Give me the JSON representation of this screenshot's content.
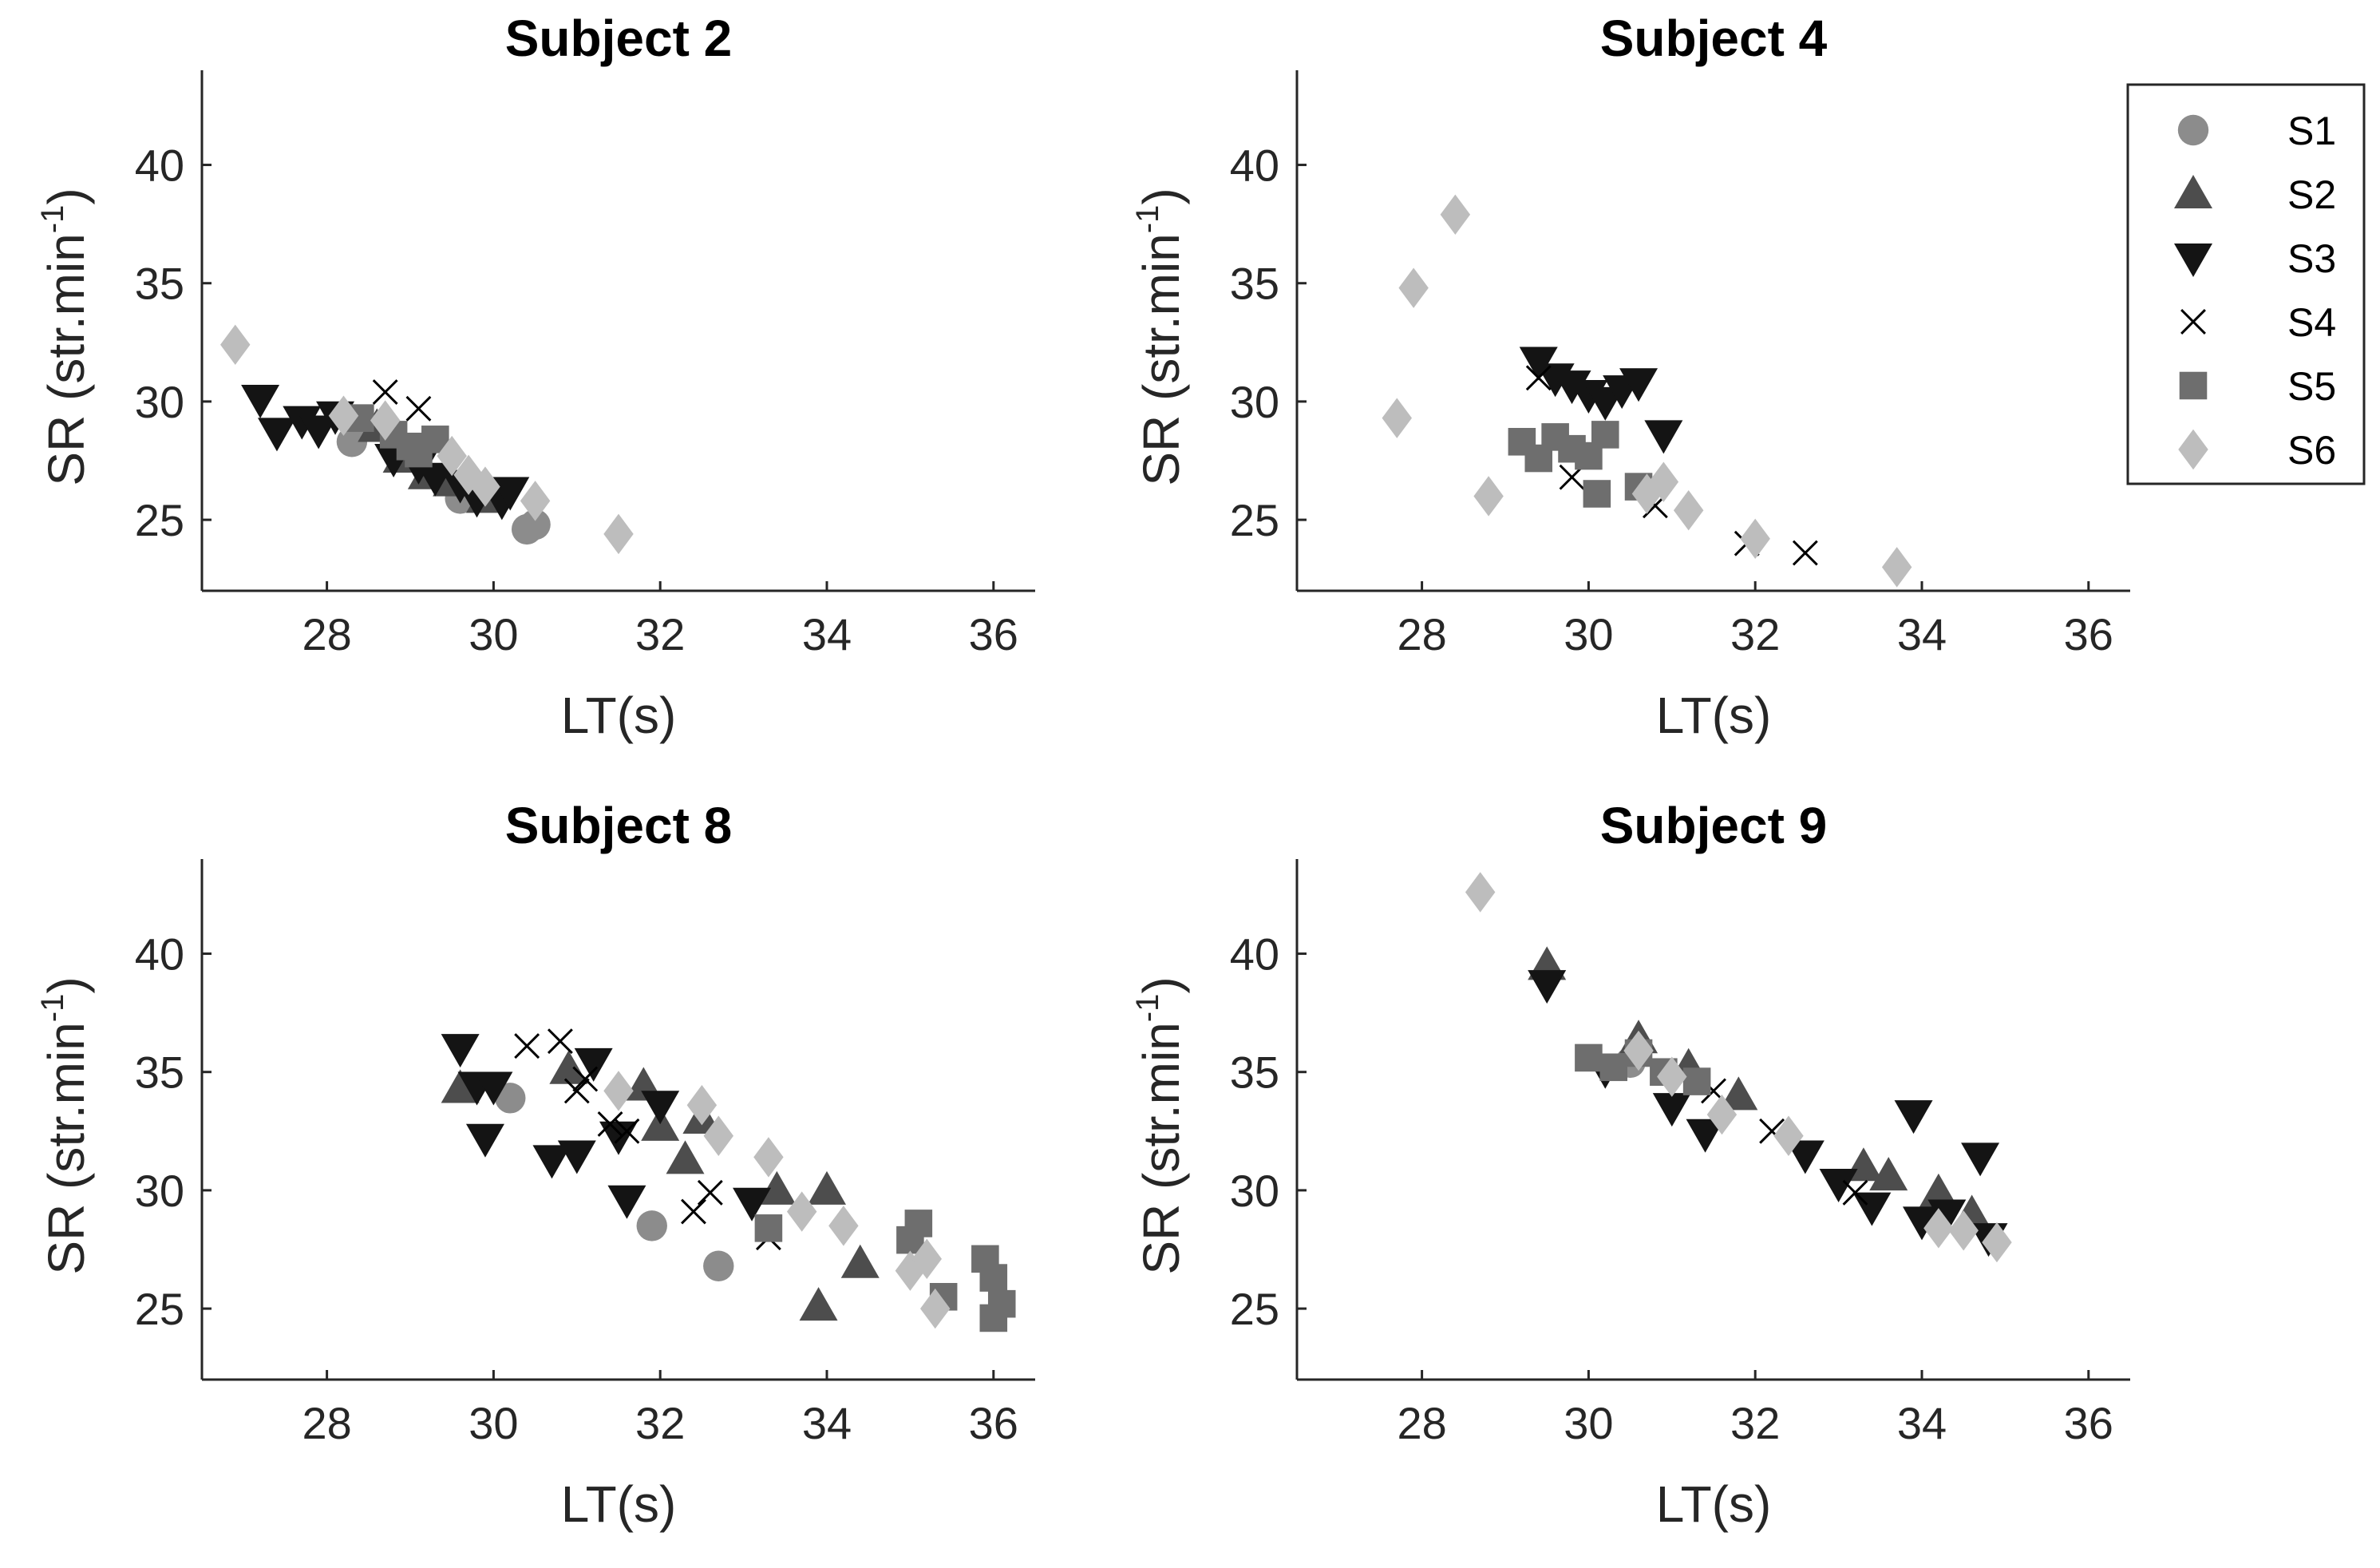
{
  "figure": {
    "legend": {
      "entries": [
        {
          "label": "S1",
          "marker": "circle",
          "color": "#8c8c8c"
        },
        {
          "label": "S2",
          "marker": "triangle-up",
          "color": "#4d4d4d"
        },
        {
          "label": "S3",
          "marker": "triangle-down",
          "color": "#141414"
        },
        {
          "label": "S4",
          "marker": "x",
          "color": "#000000"
        },
        {
          "label": "S5",
          "marker": "square",
          "color": "#6e6e6e"
        },
        {
          "label": "S6",
          "marker": "diamond",
          "color": "#bdbdbd"
        }
      ]
    }
  },
  "chart_data": [
    {
      "type": "scatter",
      "title": "Subject 2",
      "xlabel": "LT(s)",
      "ylabel": "SR (str.min",
      "ylabel_sup": "-1",
      "ylabel_close": ")",
      "xlim": [
        26.5,
        36.5
      ],
      "ylim": [
        22,
        44
      ],
      "xticks": [
        28,
        30,
        32,
        34,
        36
      ],
      "yticks": [
        25,
        30,
        35,
        40
      ],
      "series": [
        {
          "name": "S1",
          "x": [
            28.3,
            29.6,
            30.4,
            30.5
          ],
          "y": [
            28.3,
            25.9,
            24.6,
            24.8
          ]
        },
        {
          "name": "S2",
          "x": [
            28.6,
            28.9,
            29.2,
            29.5,
            29.9
          ],
          "y": [
            28.9,
            27.6,
            26.9,
            26.6,
            25.9
          ]
        },
        {
          "name": "S3",
          "x": [
            27.2,
            27.4,
            27.7,
            27.9,
            28.1,
            28.8,
            29.1,
            29.3,
            29.6,
            29.8,
            30.1,
            30.2
          ],
          "y": [
            30.1,
            28.7,
            29.2,
            28.8,
            29.4,
            27.6,
            27.3,
            26.8,
            26.5,
            25.9,
            25.8,
            26.2
          ]
        },
        {
          "name": "S4",
          "x": [
            28.7,
            29.1
          ],
          "y": [
            30.4,
            29.7
          ]
        },
        {
          "name": "S5",
          "x": [
            28.4,
            28.8,
            29.0,
            29.1,
            29.3
          ],
          "y": [
            29.3,
            28.6,
            28.1,
            27.8,
            28.4
          ]
        },
        {
          "name": "S6",
          "x": [
            26.9,
            28.2,
            28.7,
            29.5,
            29.7,
            29.9,
            30.5,
            31.5
          ],
          "y": [
            32.4,
            29.4,
            29.2,
            27.7,
            26.9,
            26.4,
            25.8,
            24.4
          ]
        }
      ]
    },
    {
      "type": "scatter",
      "title": "Subject 4",
      "xlabel": "LT(s)",
      "ylabel": "SR (str.min",
      "ylabel_sup": "-1",
      "ylabel_close": ")",
      "xlim": [
        26.5,
        36.5
      ],
      "ylim": [
        22,
        44
      ],
      "xticks": [
        28,
        30,
        32,
        34,
        36
      ],
      "yticks": [
        25,
        30,
        35,
        40
      ],
      "series": [
        {
          "name": "S1",
          "x": [],
          "y": []
        },
        {
          "name": "S2",
          "x": [],
          "y": []
        },
        {
          "name": "S3",
          "x": [
            29.4,
            29.6,
            29.8,
            30.0,
            30.2,
            30.4,
            30.6,
            30.9
          ],
          "y": [
            31.7,
            31.0,
            30.7,
            30.3,
            30.0,
            30.5,
            30.8,
            28.6
          ]
        },
        {
          "name": "S4",
          "x": [
            29.4,
            29.8,
            30.2,
            30.8,
            31.9,
            32.6
          ],
          "y": [
            31.0,
            26.8,
            28.6,
            25.6,
            24.0,
            23.6
          ]
        },
        {
          "name": "S5",
          "x": [
            29.2,
            29.4,
            29.6,
            29.8,
            30.0,
            30.1,
            30.2,
            30.6
          ],
          "y": [
            28.3,
            27.6,
            28.5,
            28.0,
            27.7,
            26.1,
            28.6,
            26.4
          ]
        },
        {
          "name": "S6",
          "x": [
            27.7,
            27.9,
            28.4,
            28.8,
            30.7,
            30.9,
            31.2,
            32.0,
            33.7
          ],
          "y": [
            29.3,
            34.8,
            37.9,
            26.0,
            26.1,
            26.6,
            25.4,
            24.2,
            23.0
          ]
        }
      ]
    },
    {
      "type": "scatter",
      "title": "Subject 8",
      "xlabel": "LT(s)",
      "ylabel": "SR (str.min",
      "ylabel_sup": "-1",
      "ylabel_close": ")",
      "xlim": [
        26.5,
        36.5
      ],
      "ylim": [
        22,
        44
      ],
      "xticks": [
        28,
        30,
        32,
        34,
        36
      ],
      "yticks": [
        25,
        30,
        35,
        40
      ],
      "series": [
        {
          "name": "S1",
          "x": [
            30.2,
            31.9,
            32.7
          ],
          "y": [
            33.9,
            28.5,
            26.8
          ]
        },
        {
          "name": "S2",
          "x": [
            29.6,
            30.9,
            31.8,
            32.0,
            32.3,
            32.5,
            33.4,
            34.0,
            34.4,
            33.9
          ],
          "y": [
            34.3,
            35.1,
            34.4,
            32.7,
            31.3,
            33.0,
            30.0,
            30.0,
            26.9,
            25.1
          ]
        },
        {
          "name": "S3",
          "x": [
            29.6,
            29.8,
            30.0,
            30.7,
            31.0,
            31.2,
            31.5,
            31.6,
            32.0,
            33.1,
            29.9
          ],
          "y": [
            36.0,
            34.4,
            34.4,
            31.3,
            31.5,
            35.4,
            32.3,
            29.6,
            33.6,
            29.5,
            32.2
          ]
        },
        {
          "name": "S4",
          "x": [
            30.4,
            30.8,
            31.1,
            31.4,
            31.6,
            32.4,
            32.6,
            33.3,
            31.0
          ],
          "y": [
            36.1,
            36.3,
            34.7,
            32.8,
            32.5,
            29.1,
            29.9,
            28.0,
            34.2
          ]
        },
        {
          "name": "S5",
          "x": [
            33.3,
            35.1,
            35.4,
            35.9,
            36.0,
            36.1,
            36.0,
            35.0
          ],
          "y": [
            28.4,
            28.6,
            25.5,
            27.1,
            24.6,
            25.2,
            26.3,
            27.9
          ]
        },
        {
          "name": "S6",
          "x": [
            31.5,
            32.5,
            32.7,
            33.3,
            33.7,
            34.2,
            35.0,
            35.2,
            35.3
          ],
          "y": [
            34.2,
            33.6,
            32.3,
            31.4,
            29.1,
            28.5,
            26.6,
            27.1,
            25.0
          ]
        }
      ]
    },
    {
      "type": "scatter",
      "title": "Subject 9",
      "xlabel": "LT(s)",
      "ylabel": "SR (str.min",
      "ylabel_sup": "-1",
      "ylabel_close": ")",
      "xlim": [
        26.5,
        36.5
      ],
      "ylim": [
        22,
        44
      ],
      "xticks": [
        28,
        30,
        32,
        34,
        36
      ],
      "yticks": [
        25,
        30,
        35,
        40
      ],
      "series": [
        {
          "name": "S1",
          "x": [
            30.5
          ],
          "y": [
            35.4
          ]
        },
        {
          "name": "S2",
          "x": [
            29.5,
            30.6,
            31.2,
            31.8,
            33.3,
            33.6,
            34.2,
            34.6
          ],
          "y": [
            39.5,
            36.4,
            35.2,
            34.0,
            31.0,
            30.6,
            29.9,
            29.0
          ]
        },
        {
          "name": "S3",
          "x": [
            29.5,
            30.2,
            31.0,
            31.4,
            32.6,
            33.0,
            33.4,
            33.9,
            34.0,
            34.3,
            34.7,
            34.8
          ],
          "y": [
            38.7,
            35.1,
            33.5,
            32.4,
            31.5,
            30.3,
            29.3,
            33.2,
            28.7,
            29.0,
            31.4,
            28.0
          ]
        },
        {
          "name": "S4",
          "x": [
            31.5,
            32.2,
            33.2
          ],
          "y": [
            34.2,
            32.5,
            29.9
          ]
        },
        {
          "name": "S5",
          "x": [
            30.0,
            30.3,
            30.6,
            30.9,
            31.3
          ],
          "y": [
            35.6,
            35.2,
            35.8,
            35.0,
            34.6
          ]
        },
        {
          "name": "S6",
          "x": [
            28.7,
            30.6,
            31.0,
            31.6,
            32.4,
            34.2,
            34.5,
            34.9
          ],
          "y": [
            42.6,
            35.9,
            34.8,
            33.2,
            32.3,
            28.4,
            28.3,
            27.8
          ]
        }
      ]
    }
  ]
}
